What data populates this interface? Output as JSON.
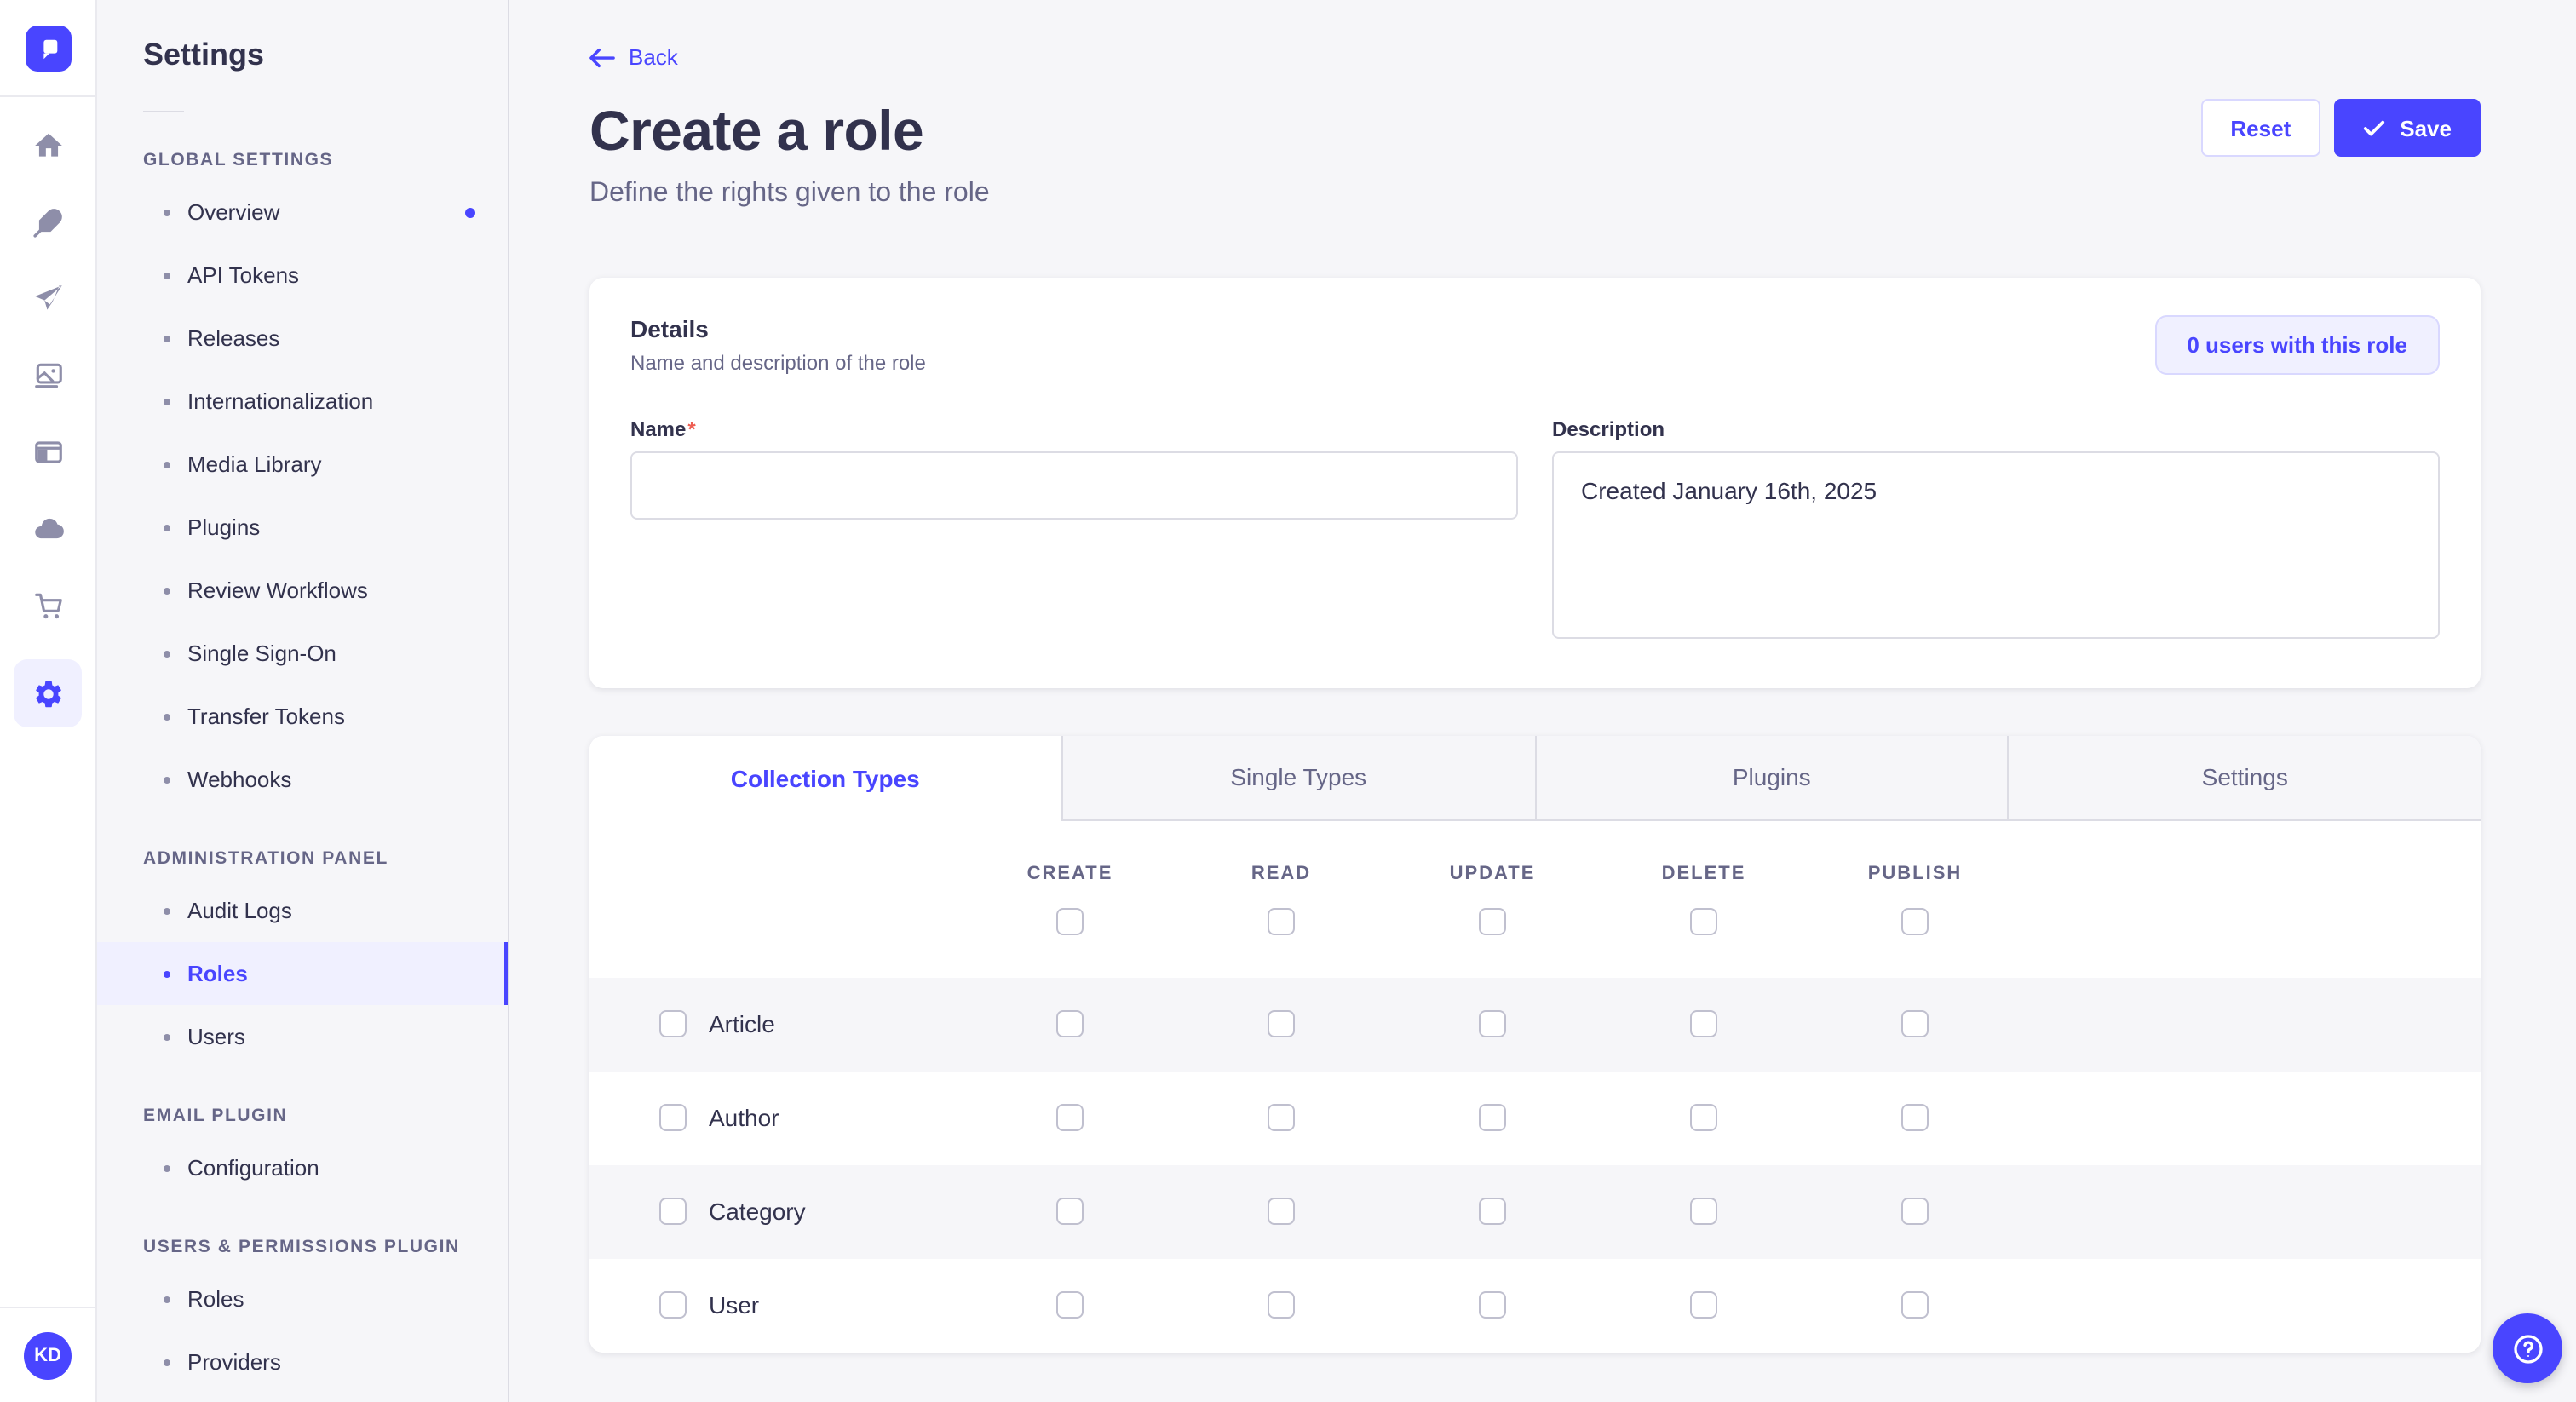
{
  "colors": {
    "primary": "#4945FF",
    "primary_light": "#F0F0FF",
    "primary_border": "#D9D8FF",
    "page_bg": "#F6F6F9",
    "text_dark": "#32324D",
    "text_gray": "#666687",
    "icon_gray": "#8E8EA9",
    "border": "#DCDCE4",
    "required_red": "#EE5E52"
  },
  "icon_rail": {
    "logo_icon": "strapi-logo",
    "items": [
      {
        "name": "home-icon",
        "active": false
      },
      {
        "name": "content-feather-icon",
        "active": false
      },
      {
        "name": "send-plane-icon",
        "active": false
      },
      {
        "name": "media-library-icon",
        "active": false
      },
      {
        "name": "layout-panel-icon",
        "active": false
      },
      {
        "name": "cloud-icon",
        "active": false
      },
      {
        "name": "marketplace-cart-icon",
        "active": false
      },
      {
        "name": "settings-gear-icon",
        "active": true
      }
    ],
    "avatar_initials": "KD"
  },
  "subnav": {
    "title": "Settings",
    "sections": [
      {
        "label": "GLOBAL SETTINGS",
        "items": [
          {
            "label": "Overview",
            "active": false,
            "dot": true
          },
          {
            "label": "API Tokens",
            "active": false,
            "dot": false
          },
          {
            "label": "Releases",
            "active": false,
            "dot": false
          },
          {
            "label": "Internationalization",
            "active": false,
            "dot": false
          },
          {
            "label": "Media Library",
            "active": false,
            "dot": false
          },
          {
            "label": "Plugins",
            "active": false,
            "dot": false
          },
          {
            "label": "Review Workflows",
            "active": false,
            "dot": false
          },
          {
            "label": "Single Sign-On",
            "active": false,
            "dot": false
          },
          {
            "label": "Transfer Tokens",
            "active": false,
            "dot": false
          },
          {
            "label": "Webhooks",
            "active": false,
            "dot": false
          }
        ]
      },
      {
        "label": "ADMINISTRATION PANEL",
        "items": [
          {
            "label": "Audit Logs",
            "active": false,
            "dot": false
          },
          {
            "label": "Roles",
            "active": true,
            "dot": false
          },
          {
            "label": "Users",
            "active": false,
            "dot": false
          }
        ]
      },
      {
        "label": "EMAIL PLUGIN",
        "items": [
          {
            "label": "Configuration",
            "active": false,
            "dot": false
          }
        ]
      },
      {
        "label": "USERS & PERMISSIONS PLUGIN",
        "items": [
          {
            "label": "Roles",
            "active": false,
            "dot": false
          },
          {
            "label": "Providers",
            "active": false,
            "dot": false
          }
        ]
      }
    ]
  },
  "header": {
    "back_label": "Back",
    "title": "Create a role",
    "subtitle": "Define the rights given to the role",
    "reset_label": "Reset",
    "save_label": "Save",
    "save_icon": "check-icon"
  },
  "details_card": {
    "title": "Details",
    "subtitle": "Name and description of the role",
    "users_badge": "0 users with this role",
    "name_label": "Name",
    "name_required": "*",
    "name_value": "",
    "description_label": "Description",
    "description_value": "Created January 16th, 2025"
  },
  "permissions": {
    "tabs": [
      {
        "label": "Collection Types",
        "active": true
      },
      {
        "label": "Single Types",
        "active": false
      },
      {
        "label": "Plugins",
        "active": false
      },
      {
        "label": "Settings",
        "active": false
      }
    ],
    "columns": [
      "Create",
      "Read",
      "Update",
      "Delete",
      "Publish"
    ],
    "header_checkboxes_checked": [
      false,
      false,
      false,
      false,
      false
    ],
    "rows": [
      {
        "name": "Article",
        "row_checked": false,
        "checks": [
          false,
          false,
          false,
          false,
          false
        ]
      },
      {
        "name": "Author",
        "row_checked": false,
        "checks": [
          false,
          false,
          false,
          false,
          false
        ]
      },
      {
        "name": "Category",
        "row_checked": false,
        "checks": [
          false,
          false,
          false,
          false,
          false
        ]
      },
      {
        "name": "User",
        "row_checked": false,
        "checks": [
          false,
          false,
          false,
          false,
          false
        ]
      }
    ]
  },
  "help_button": {
    "icon": "question-mark-icon"
  }
}
